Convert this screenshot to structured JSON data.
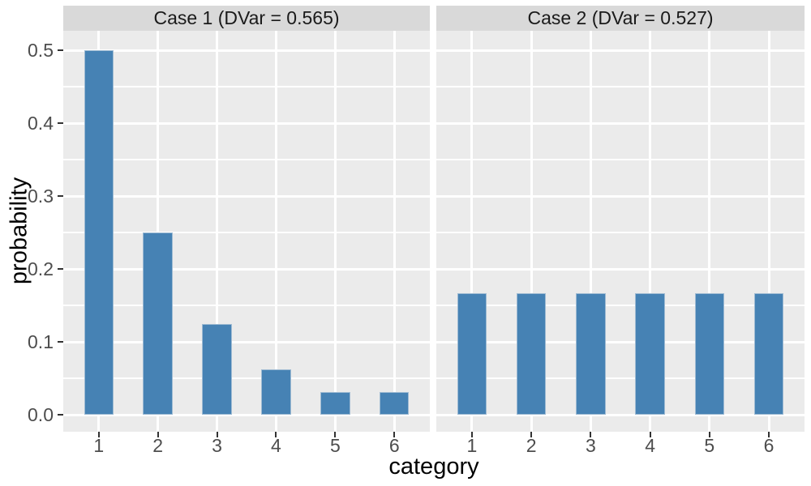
{
  "colors": {
    "background": "#FFFFFF",
    "panel_bg": "#EBEBEB",
    "strip_bg": "#D9D9D9",
    "grid": "#FFFFFF",
    "bar_fill": "#4682B4",
    "bar_border": "#9FBBD3",
    "tick_mark": "#333333",
    "tick_label": "#4D4D4D",
    "strip_text": "#1A1A1A",
    "axis_title": "#000000"
  },
  "chart_data": {
    "type": "bar",
    "faceted": true,
    "title": "",
    "xlabel": "category",
    "ylabel": "probability",
    "categories": [
      "1",
      "2",
      "3",
      "4",
      "5",
      "6"
    ],
    "y_ticks": [
      0.0,
      0.1,
      0.2,
      0.3,
      0.4,
      0.5
    ],
    "y_tick_labels": [
      "0.0",
      "0.1",
      "0.2",
      "0.3",
      "0.4",
      "0.5"
    ],
    "ylim": [
      -0.023,
      0.527
    ],
    "bar_width_fraction": 0.5,
    "grid": "white major horizontal lines every 0.1, minor every 0.05, vertical lines at category centers, gray panel background",
    "legend": "none",
    "facets": [
      {
        "label": "Case 1 (DVar = 0.565)",
        "values": [
          0.5,
          0.25,
          0.125,
          0.0625,
          0.03125,
          0.03125
        ]
      },
      {
        "label": "Case 2 (DVar = 0.527)",
        "values": [
          0.1667,
          0.1667,
          0.1667,
          0.1667,
          0.1667,
          0.1667
        ]
      }
    ]
  }
}
